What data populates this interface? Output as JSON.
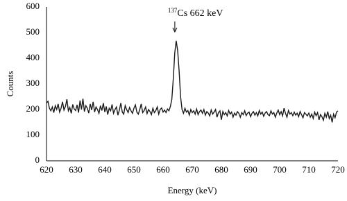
{
  "chart_data": {
    "type": "line",
    "xlabel": "Energy (keV)",
    "ylabel": "Counts",
    "annotation": {
      "superscript": "137",
      "text": "Cs 662 keV"
    },
    "xlim": [
      620,
      720
    ],
    "xticks": [
      620,
      630,
      640,
      650,
      660,
      670,
      680,
      690,
      700,
      710,
      720
    ],
    "ylim": [
      0,
      600
    ],
    "yticks": [
      0,
      100,
      200,
      300,
      400,
      500,
      600
    ],
    "grid": false,
    "x": [
      620,
      620.5,
      621,
      621.5,
      622,
      622.5,
      623,
      623.5,
      624,
      624.5,
      625,
      625.5,
      626,
      626.5,
      627,
      627.5,
      628,
      628.5,
      629,
      629.5,
      630,
      630.5,
      631,
      631.5,
      632,
      632.5,
      633,
      633.5,
      634,
      634.5,
      635,
      635.5,
      636,
      636.5,
      637,
      637.5,
      638,
      638.5,
      639,
      639.5,
      640,
      640.5,
      641,
      641.5,
      642,
      642.5,
      643,
      643.5,
      644,
      644.5,
      645,
      645.5,
      646,
      646.5,
      647,
      647.5,
      648,
      648.5,
      649,
      649.5,
      650,
      650.5,
      651,
      651.5,
      652,
      652.5,
      653,
      653.5,
      654,
      654.5,
      655,
      655.5,
      656,
      656.5,
      657,
      657.5,
      658,
      658.5,
      659,
      659.5,
      660,
      660.5,
      661,
      661.5,
      662,
      662.5,
      663,
      663.5,
      664,
      664.5,
      665,
      665.5,
      666,
      666.5,
      667,
      667.5,
      668,
      668.5,
      669,
      669.5,
      670,
      670.5,
      671,
      671.5,
      672,
      672.5,
      673,
      673.5,
      674,
      674.5,
      675,
      675.5,
      676,
      676.5,
      677,
      677.5,
      678,
      678.5,
      679,
      679.5,
      680,
      680.5,
      681,
      681.5,
      682,
      682.5,
      683,
      683.5,
      684,
      684.5,
      685,
      685.5,
      686,
      686.5,
      687,
      687.5,
      688,
      688.5,
      689,
      689.5,
      690,
      690.5,
      691,
      691.5,
      692,
      692.5,
      693,
      693.5,
      694,
      694.5,
      695,
      695.5,
      696,
      696.5,
      697,
      697.5,
      698,
      698.5,
      699,
      699.5,
      700,
      700.5,
      701,
      701.5,
      702,
      702.5,
      703,
      703.5,
      704,
      704.5,
      705,
      705.5,
      706,
      706.5,
      707,
      707.5,
      708,
      708.5,
      709,
      709.5,
      710,
      710.5,
      711,
      711.5,
      712,
      712.5,
      713,
      713.5,
      714,
      714.5,
      715,
      715.5,
      716,
      716.5,
      717,
      717.5,
      718,
      718.5,
      719,
      719.5,
      720
    ],
    "series": [
      {
        "color": "#1a1a1a",
        "values": [
          225,
          232,
          205,
          195,
          210,
          188,
          215,
          200,
          222,
          190,
          205,
          230,
          198,
          212,
          240,
          195,
          208,
          185,
          220,
          202,
          196,
          218,
          188,
          235,
          200,
          242,
          192,
          215,
          205,
          186,
          222,
          198,
          230,
          190,
          210,
          200,
          185,
          215,
          196,
          225,
          190,
          212,
          180,
          205,
          195,
          220,
          185,
          200,
          210,
          178,
          198,
          225,
          190,
          182,
          215,
          200,
          188,
          208,
          195,
          185,
          205,
          218,
          190,
          182,
          200,
          222,
          188,
          196,
          210,
          184,
          200,
          192,
          180,
          205,
          188,
          196,
          210,
          182,
          200,
          206,
          190,
          198,
          188,
          202,
          195,
          212,
          240,
          320,
          420,
          468,
          430,
          350,
          250,
          200,
          185,
          205,
          190,
          196,
          178,
          200,
          188,
          195,
          182,
          202,
          180,
          192,
          198,
          185,
          200,
          178,
          192,
          186,
          175,
          198,
          182,
          190,
          200,
          170,
          188,
          195,
          160,
          192,
          180,
          188,
          175,
          196,
          182,
          190,
          170,
          186,
          178,
          192,
          185,
          170,
          188,
          180,
          195,
          176,
          186,
          190,
          172,
          185,
          192,
          178,
          188,
          175,
          196,
          182,
          190,
          174,
          186,
          192,
          180,
          176,
          195,
          182,
          188,
          170,
          186,
          198,
          180,
          192,
          175,
          205,
          185,
          170,
          196,
          182,
          188,
          176,
          190,
          178,
          186,
          172,
          192,
          180,
          168,
          188,
          182,
          175,
          186,
          170,
          182,
          165,
          190,
          176,
          188,
          160,
          180,
          172,
          158,
          185,
          170,
          192,
          165,
          178,
          150,
          182,
          168,
          190,
          195
        ]
      }
    ]
  }
}
